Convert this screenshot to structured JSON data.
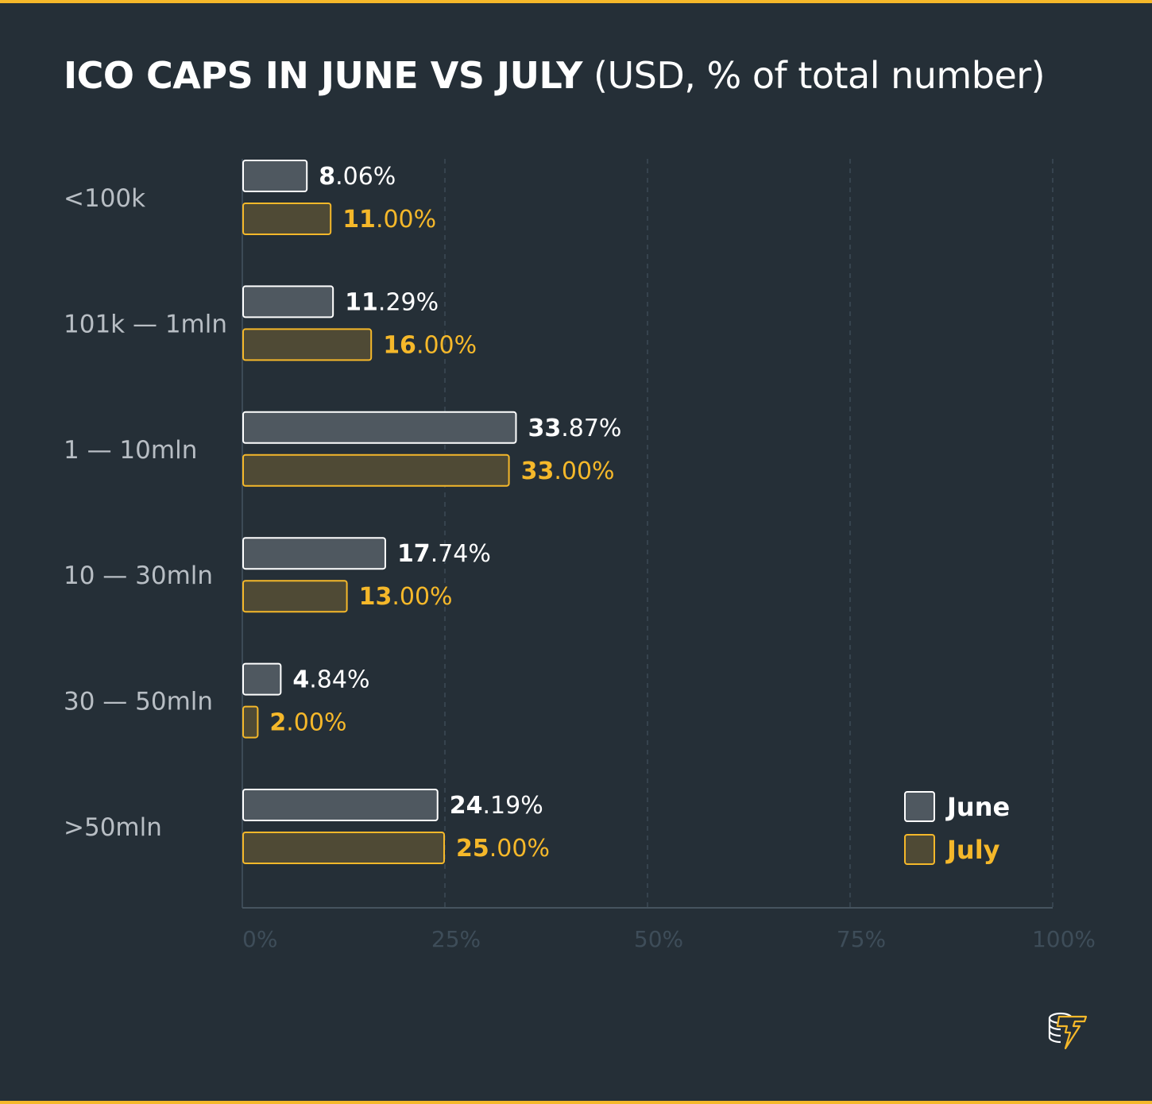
{
  "chart_data": {
    "type": "bar",
    "orientation": "horizontal",
    "title": "ICO CAPS IN JUNE VS JULY",
    "subtitle": "(USD, % of total number)",
    "categories": [
      "<100k",
      "101k — 1mln",
      "1 — 10mln",
      "10 — 30mln",
      "30 — 50mln",
      ">50mln"
    ],
    "series": [
      {
        "name": "June",
        "values": [
          8.06,
          11.29,
          33.87,
          17.74,
          4.84,
          24.19
        ],
        "labels": [
          "8.06%",
          "11.29%",
          "33.87%",
          "17.74%",
          "4.84%",
          "24.19%"
        ],
        "color": "#ffffff",
        "fill": "#4f5860"
      },
      {
        "name": "July",
        "values": [
          11.0,
          16.0,
          33.0,
          13.0,
          2.0,
          25.0
        ],
        "labels": [
          "11.00%",
          "16.00%",
          "33.00%",
          "13.00%",
          "2.00%",
          "25.00%"
        ],
        "color": "#f5b82a",
        "fill": "#4f4a35"
      }
    ],
    "xlim": [
      0,
      100
    ],
    "xticks": [
      0,
      25,
      50,
      75,
      100
    ],
    "xtick_labels": [
      "0%",
      "25%",
      "50%",
      "75%",
      "100%"
    ],
    "grid": true,
    "legend_position": "bottom-right"
  },
  "colors": {
    "background": "#252f37",
    "accent": "#f5b82a",
    "category_text": "#b8bec4",
    "tick_text": "#3e4d59",
    "grid": "#3c4a56"
  },
  "logo": {
    "icon": "coins-lightning-logo"
  }
}
